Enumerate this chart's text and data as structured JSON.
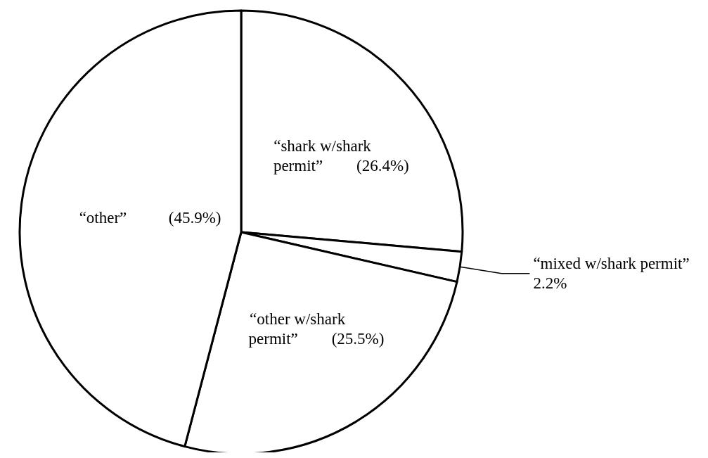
{
  "chart_data": {
    "type": "pie",
    "categories": [
      "“shark w/shark permit”",
      "“mixed w/shark permit”",
      "“other w/shark permit”",
      "“other”"
    ],
    "values": [
      26.4,
      2.2,
      25.5,
      45.9
    ],
    "colors": [
      "#ffffff",
      "#ffffff",
      "#ffffff",
      "#ffffff"
    ],
    "value_labels": [
      "(26.4%)",
      "2.2%",
      "(25.5%)",
      "(45.9%)"
    ]
  }
}
